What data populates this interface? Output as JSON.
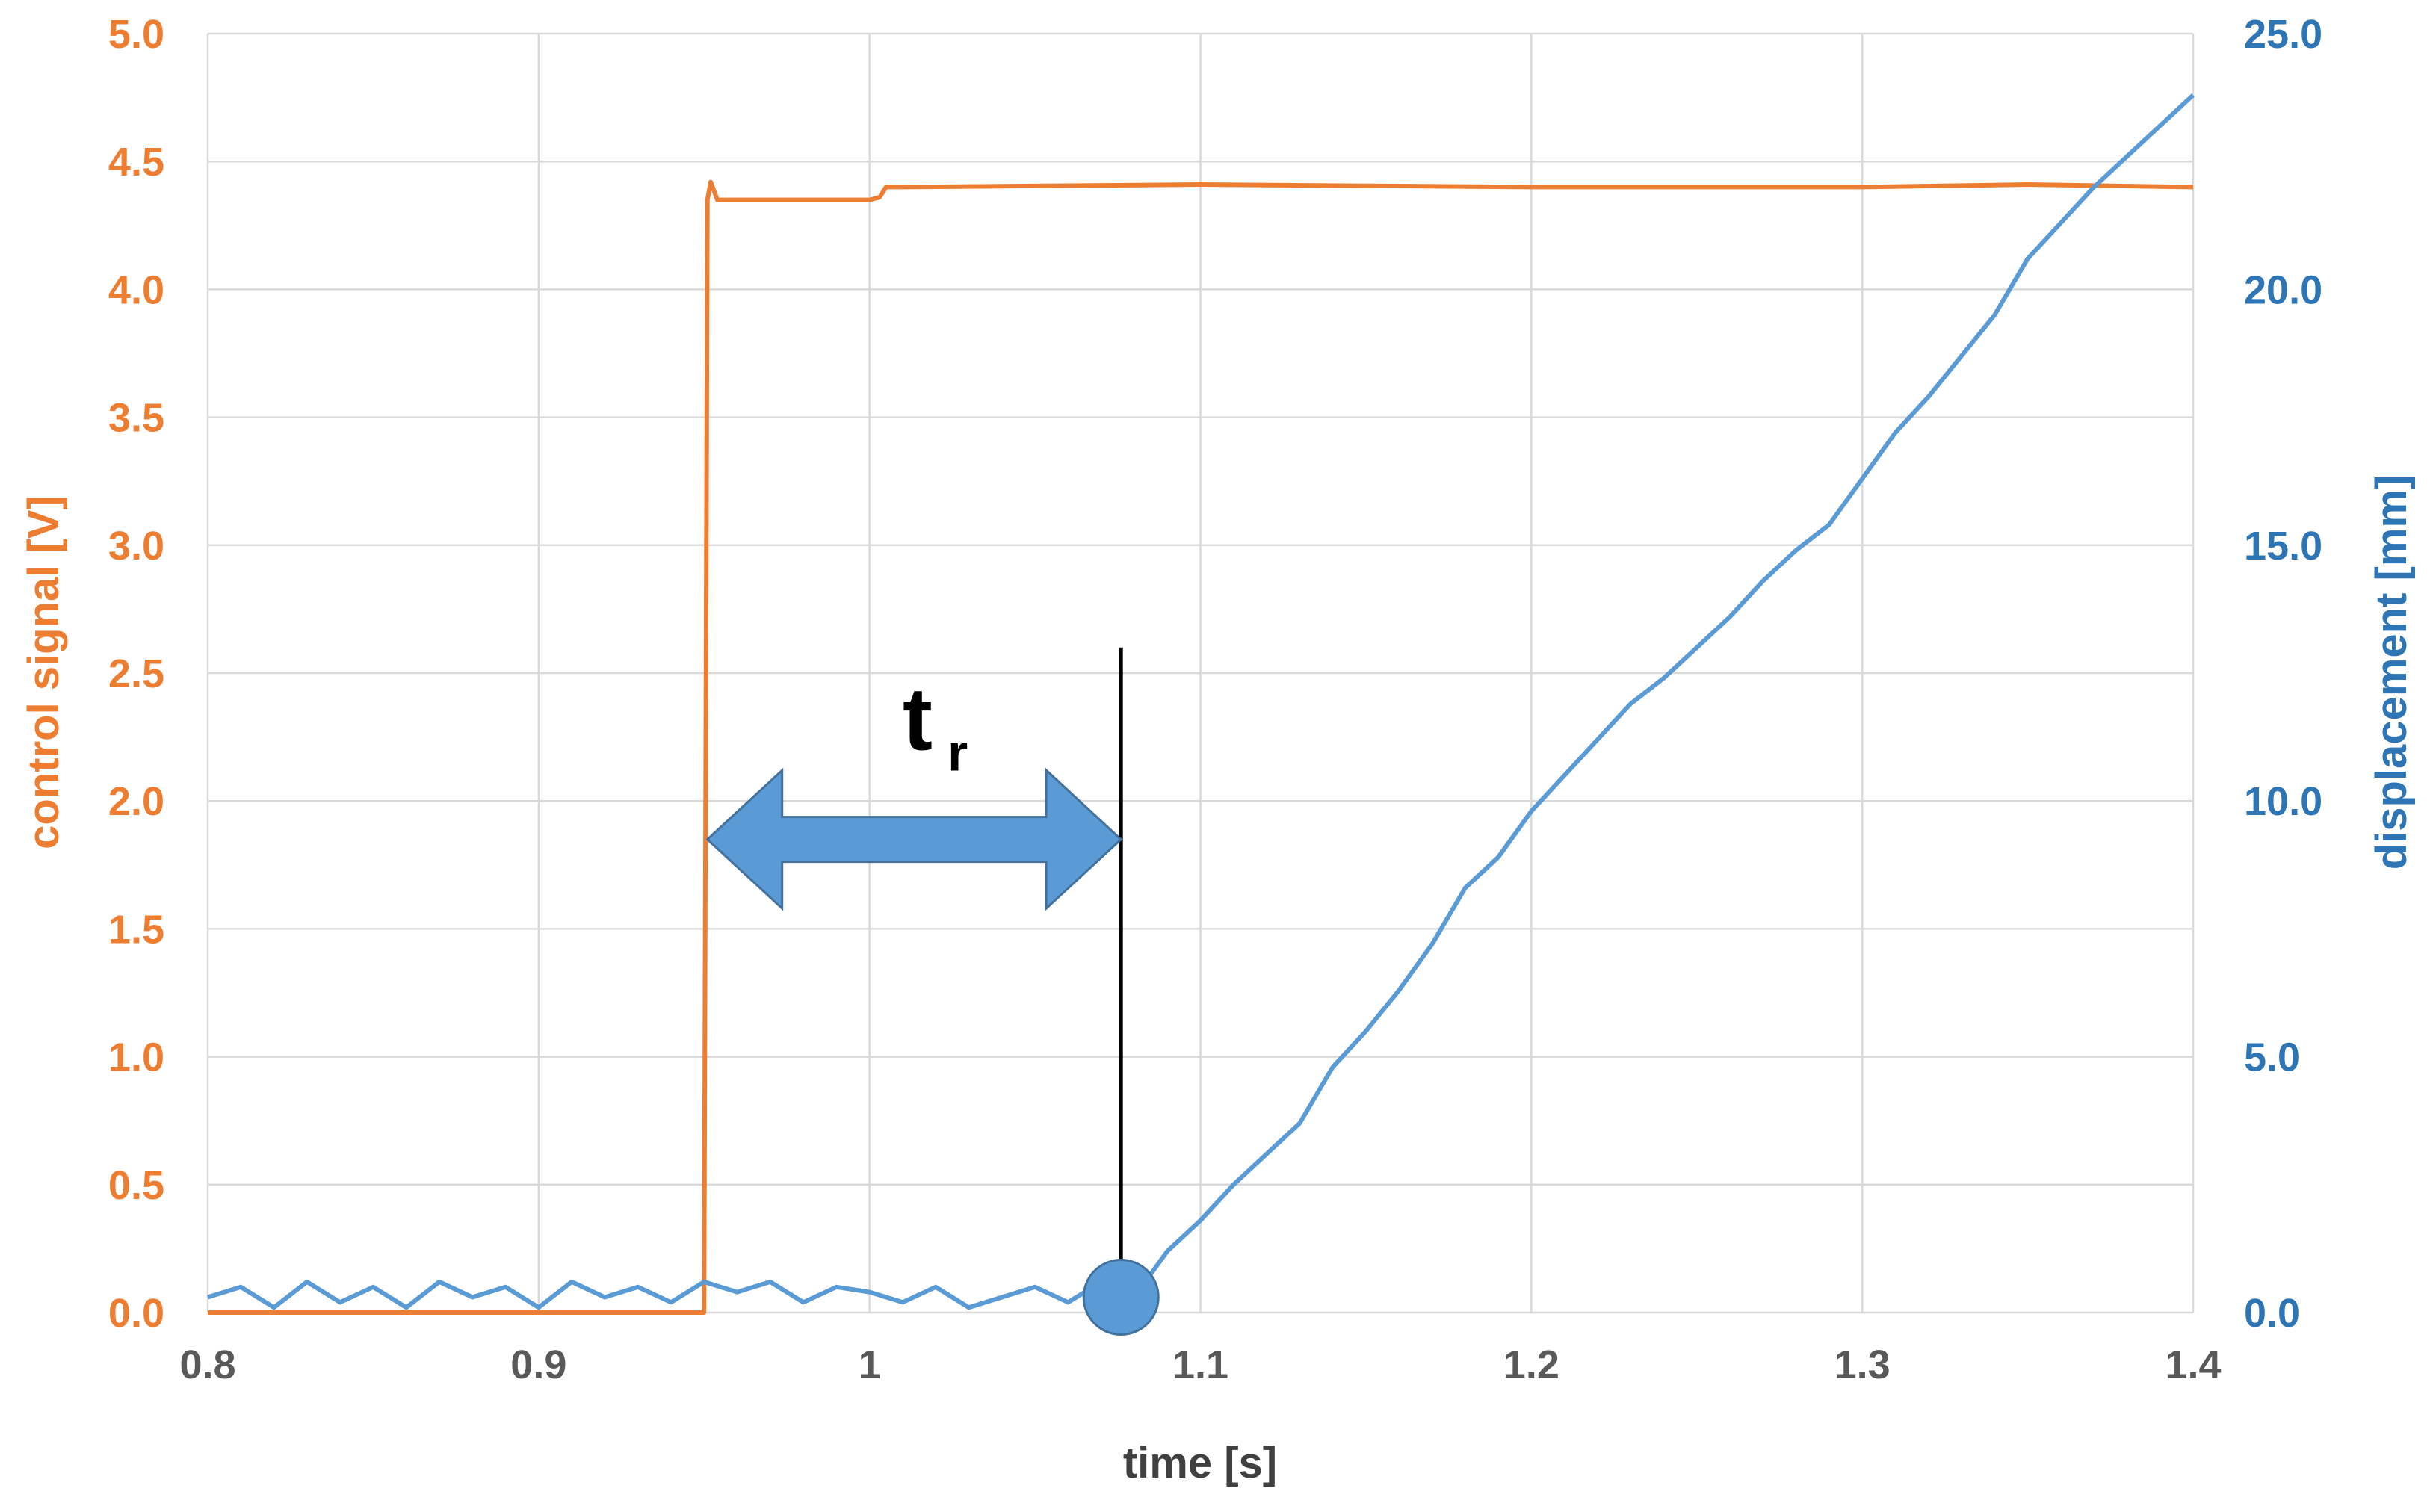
{
  "chart_data": {
    "type": "line",
    "xlabel": "time [s]",
    "ylabel_left": "control signal [V]",
    "ylabel_right": "displacement [mm]",
    "xlim": [
      0.8,
      1.4
    ],
    "ylim_left": [
      0,
      5
    ],
    "ylim_right": [
      0,
      25
    ],
    "grid": true,
    "x_ticks": [
      "0.8",
      "0.9",
      "1",
      "1.1",
      "1.2",
      "1.3",
      "1.4"
    ],
    "y_left_ticks": [
      "0.0",
      "0.5",
      "1.0",
      "1.5",
      "2.0",
      "2.5",
      "3.0",
      "3.5",
      "4.0",
      "4.5",
      "5.0"
    ],
    "y_right_ticks": [
      "0.0",
      "5.0",
      "10.0",
      "15.0",
      "20.0",
      "25.0"
    ],
    "series": [
      {
        "axis": "left",
        "color": "#ED7D31",
        "x": [
          0.8,
          0.95,
          0.951,
          0.952,
          0.954,
          0.96,
          1.0,
          1.003,
          1.005,
          1.01,
          1.1,
          1.2,
          1.3,
          1.35,
          1.4
        ],
        "y": [
          0.0,
          0.0,
          4.35,
          4.42,
          4.35,
          4.35,
          4.35,
          4.36,
          4.4,
          4.4,
          4.41,
          4.4,
          4.4,
          4.41,
          4.4
        ]
      },
      {
        "axis": "right",
        "color": "#5B9BD5",
        "x": [
          0.8,
          0.81,
          0.82,
          0.83,
          0.84,
          0.85,
          0.86,
          0.87,
          0.88,
          0.89,
          0.9,
          0.91,
          0.92,
          0.93,
          0.94,
          0.95,
          0.96,
          0.97,
          0.98,
          0.99,
          1.0,
          1.01,
          1.02,
          1.03,
          1.04,
          1.05,
          1.06,
          1.07,
          1.08,
          1.09,
          1.1,
          1.11,
          1.12,
          1.13,
          1.14,
          1.15,
          1.16,
          1.17,
          1.18,
          1.19,
          1.2,
          1.21,
          1.22,
          1.23,
          1.24,
          1.25,
          1.26,
          1.27,
          1.28,
          1.29,
          1.3,
          1.31,
          1.32,
          1.33,
          1.34,
          1.35,
          1.36,
          1.37,
          1.38,
          1.39,
          1.4
        ],
        "y": [
          0.3,
          0.5,
          0.1,
          0.6,
          0.2,
          0.5,
          0.1,
          0.6,
          0.3,
          0.5,
          0.1,
          0.6,
          0.3,
          0.5,
          0.2,
          0.6,
          0.4,
          0.6,
          0.2,
          0.5,
          0.4,
          0.2,
          0.5,
          0.1,
          0.3,
          0.5,
          0.2,
          0.6,
          0.3,
          1.2,
          1.8,
          2.5,
          3.1,
          3.7,
          4.8,
          5.5,
          6.3,
          7.2,
          8.3,
          8.9,
          9.8,
          10.5,
          11.2,
          11.9,
          12.4,
          13.0,
          13.6,
          14.3,
          14.9,
          15.4,
          16.3,
          17.2,
          17.9,
          18.7,
          19.5,
          20.6,
          21.3,
          22.0,
          22.6,
          23.2,
          23.8
        ]
      }
    ],
    "annotations": {
      "arrow": {
        "from_x": 0.951,
        "to_x": 1.076,
        "y_left": 1.85
      },
      "vline": {
        "x": 1.076,
        "y_left_top": 2.6,
        "y_left_bottom": 0.07
      },
      "marker": {
        "x": 1.076,
        "y_right": 0.3
      },
      "label": {
        "main": "t",
        "sub": "r",
        "x": 1.01,
        "y_left": 2.2
      }
    }
  }
}
